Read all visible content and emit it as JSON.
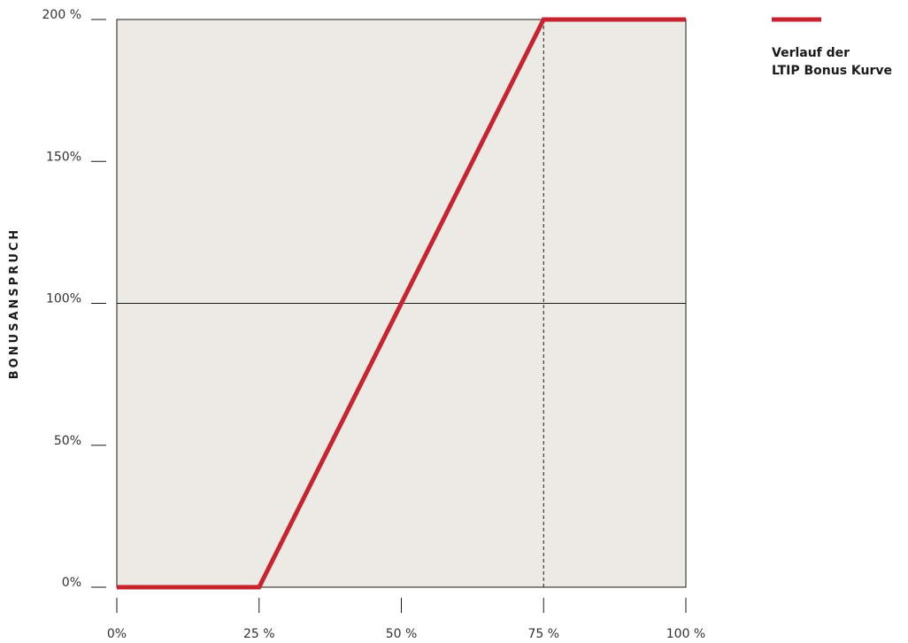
{
  "chart_data": {
    "type": "line",
    "title": "",
    "xlabel": "",
    "ylabel": "BONUSANSPRUCH",
    "xlim": [
      0,
      100
    ],
    "ylim": [
      0,
      200
    ],
    "x_ticks": [
      "0%",
      "25 %",
      "50 %",
      "75 %",
      "100 %"
    ],
    "y_ticks": [
      "0%",
      "50%",
      "100%",
      "150%",
      "200 %"
    ],
    "series": [
      {
        "name": "Verlauf der LTIP Bonus Kurve",
        "x": [
          0,
          25,
          75,
          100
        ],
        "y": [
          0,
          0,
          200,
          200
        ],
        "color": "#c8242f"
      }
    ],
    "reference_lines": {
      "horizontal_y": 100,
      "vertical_dashed_x": 75
    },
    "legend": {
      "placement": "top-right",
      "lines": [
        "Verlauf der",
        "LTIP Bonus Kurve"
      ]
    },
    "colors": {
      "plot_background": "#eceae4",
      "series": "#c8242f",
      "axis": "#1a1a1a"
    },
    "grid": false
  }
}
